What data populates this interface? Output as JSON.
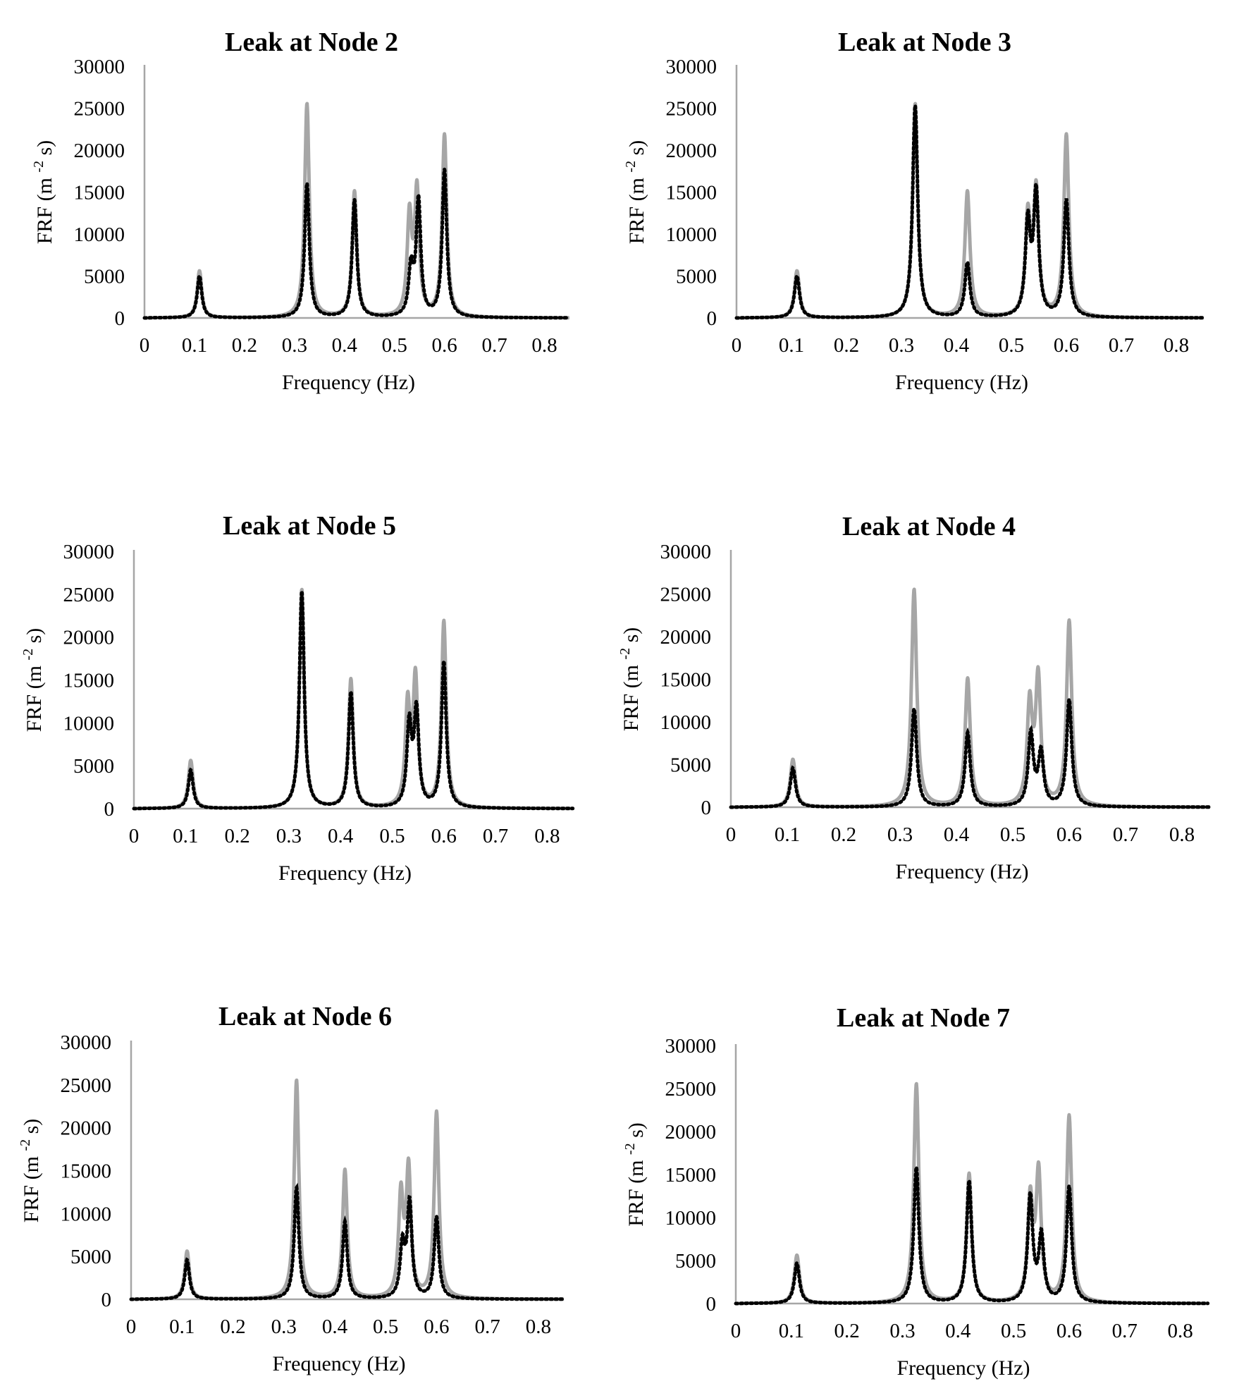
{
  "colors": {
    "baseline": "#a6a6a6",
    "leak": "#000000",
    "axis": "#a6a6a6"
  },
  "chart_data": [
    {
      "type": "line",
      "title": "Leak at Node 2",
      "xlabel": "Frequency (Hz)",
      "ylabel_main": "FRF",
      "ylabel_unit": "(m",
      "ylabel_exp": "-2",
      "ylabel_tail": "s)",
      "xlim": [
        0,
        0.85
      ],
      "ylim": [
        0,
        30000
      ],
      "xticks": [
        "0",
        "0.1",
        "0.2",
        "0.3",
        "0.4",
        "0.5",
        "0.6",
        "0.7",
        "0.8"
      ],
      "yticks": [
        "0",
        "5000",
        "10000",
        "15000",
        "20000",
        "25000",
        "30000"
      ],
      "grid": false,
      "series": [
        {
          "style": "solid-grey",
          "peaks": [
            [
              0.11,
              5600
            ],
            [
              0.325,
              25500
            ],
            [
              0.42,
              15000
            ],
            [
              0.53,
              11700
            ],
            [
              0.545,
              14800
            ],
            [
              0.6,
              21700
            ]
          ]
        },
        {
          "style": "dotted-black",
          "peaks": [
            [
              0.11,
              5000
            ],
            [
              0.325,
              16000
            ],
            [
              0.42,
              14000
            ],
            [
              0.533,
              5600
            ],
            [
              0.548,
              13800
            ],
            [
              0.6,
              17500
            ]
          ]
        }
      ]
    },
    {
      "type": "line",
      "title": "Leak at Node 3",
      "xlabel": "Frequency (Hz)",
      "ylabel_main": "FRF",
      "ylabel_unit": "(m",
      "ylabel_exp": "-2",
      "ylabel_tail": "s)",
      "xlim": [
        0,
        0.85
      ],
      "ylim": [
        0,
        30000
      ],
      "xticks": [
        "0",
        "0.1",
        "0.2",
        "0.3",
        "0.4",
        "0.5",
        "0.6",
        "0.7",
        "0.8"
      ],
      "yticks": [
        "0",
        "5000",
        "10000",
        "15000",
        "20000",
        "25000",
        "30000"
      ],
      "grid": false,
      "series": [
        {
          "style": "solid-grey",
          "peaks": [
            [
              0.11,
              5600
            ],
            [
              0.325,
              25500
            ],
            [
              0.42,
              15000
            ],
            [
              0.53,
              11700
            ],
            [
              0.545,
              14800
            ],
            [
              0.6,
              21700
            ]
          ]
        },
        {
          "style": "dotted-black",
          "peaks": [
            [
              0.11,
              5000
            ],
            [
              0.325,
              25300
            ],
            [
              0.42,
              6500
            ],
            [
              0.53,
              11000
            ],
            [
              0.545,
              14500
            ],
            [
              0.6,
              14000
            ]
          ]
        }
      ]
    },
    {
      "type": "line",
      "title": "Leak at Node 5",
      "xlabel": "Frequency (Hz)",
      "ylabel_main": "FRF",
      "ylabel_unit": "(m",
      "ylabel_exp": "-2",
      "ylabel_tail": "s)",
      "xlim": [
        0,
        0.85
      ],
      "ylim": [
        0,
        30000
      ],
      "xticks": [
        "0",
        "0.1",
        "0.2",
        "0.3",
        "0.4",
        "0.5",
        "0.6",
        "0.7",
        "0.8"
      ],
      "yticks": [
        "0",
        "5000",
        "10000",
        "15000",
        "20000",
        "25000",
        "30000"
      ],
      "grid": false,
      "series": [
        {
          "style": "solid-grey",
          "peaks": [
            [
              0.11,
              5600
            ],
            [
              0.325,
              25500
            ],
            [
              0.42,
              15000
            ],
            [
              0.53,
              11700
            ],
            [
              0.545,
              14800
            ],
            [
              0.6,
              21700
            ]
          ]
        },
        {
          "style": "dotted-black",
          "peaks": [
            [
              0.11,
              4500
            ],
            [
              0.325,
              25300
            ],
            [
              0.42,
              13500
            ],
            [
              0.533,
              9500
            ],
            [
              0.547,
              11000
            ],
            [
              0.6,
              17000
            ]
          ]
        }
      ]
    },
    {
      "type": "line",
      "title": "Leak at Node 4",
      "xlabel": "Frequency (Hz)",
      "ylabel_main": "FRF",
      "ylabel_unit": "(m",
      "ylabel_exp": "-2",
      "ylabel_tail": "s)",
      "xlim": [
        0,
        0.85
      ],
      "ylim": [
        0,
        30000
      ],
      "xticks": [
        "0",
        "0.1",
        "0.2",
        "0.3",
        "0.4",
        "0.5",
        "0.6",
        "0.7",
        "0.8"
      ],
      "yticks": [
        "0",
        "5000",
        "10000",
        "15000",
        "20000",
        "25000",
        "30000"
      ],
      "grid": false,
      "series": [
        {
          "style": "solid-grey",
          "peaks": [
            [
              0.11,
              5600
            ],
            [
              0.325,
              25500
            ],
            [
              0.42,
              15000
            ],
            [
              0.53,
              11700
            ],
            [
              0.545,
              14800
            ],
            [
              0.6,
              21700
            ]
          ]
        },
        {
          "style": "dotted-black",
          "peaks": [
            [
              0.11,
              4600
            ],
            [
              0.325,
              11500
            ],
            [
              0.42,
              8700
            ],
            [
              0.532,
              8500
            ],
            [
              0.55,
              6200
            ],
            [
              0.6,
              12500
            ]
          ]
        }
      ]
    },
    {
      "type": "line",
      "title": "Leak at Node 6",
      "xlabel": "Frequency (Hz)",
      "ylabel_main": "FRF",
      "ylabel_unit": "(m",
      "ylabel_exp": "-2",
      "ylabel_tail": "s)",
      "xlim": [
        0,
        0.85
      ],
      "ylim": [
        0,
        30000
      ],
      "xticks": [
        "0",
        "0.1",
        "0.2",
        "0.3",
        "0.4",
        "0.5",
        "0.6",
        "0.7",
        "0.8"
      ],
      "yticks": [
        "0",
        "5000",
        "10000",
        "15000",
        "20000",
        "25000",
        "30000"
      ],
      "grid": false,
      "series": [
        {
          "style": "solid-grey",
          "peaks": [
            [
              0.11,
              5600
            ],
            [
              0.325,
              25500
            ],
            [
              0.42,
              15000
            ],
            [
              0.53,
              11700
            ],
            [
              0.545,
              14800
            ],
            [
              0.6,
              21700
            ]
          ]
        },
        {
          "style": "dotted-black",
          "peaks": [
            [
              0.11,
              4600
            ],
            [
              0.325,
              13000
            ],
            [
              0.42,
              9000
            ],
            [
              0.533,
              6000
            ],
            [
              0.547,
              11000
            ],
            [
              0.6,
              9500
            ]
          ]
        }
      ]
    },
    {
      "type": "line",
      "title": "Leak at Node 7",
      "xlabel": "Frequency (Hz)",
      "ylabel_main": "FRF",
      "ylabel_unit": "(m",
      "ylabel_exp": "-2",
      "ylabel_tail": "s)",
      "xlim": [
        0,
        0.85
      ],
      "ylim": [
        0,
        30000
      ],
      "xticks": [
        "0",
        "0.1",
        "0.2",
        "0.3",
        "0.4",
        "0.5",
        "0.6",
        "0.7",
        "0.8"
      ],
      "yticks": [
        "0",
        "5000",
        "10000",
        "15000",
        "20000",
        "25000",
        "30000"
      ],
      "grid": false,
      "series": [
        {
          "style": "solid-grey",
          "peaks": [
            [
              0.11,
              5600
            ],
            [
              0.325,
              25500
            ],
            [
              0.42,
              15000
            ],
            [
              0.53,
              11700
            ],
            [
              0.545,
              14800
            ],
            [
              0.6,
              21700
            ]
          ]
        },
        {
          "style": "dotted-black",
          "peaks": [
            [
              0.11,
              4700
            ],
            [
              0.325,
              15800
            ],
            [
              0.42,
              14200
            ],
            [
              0.53,
              12300
            ],
            [
              0.55,
              7600
            ],
            [
              0.6,
              13500
            ]
          ]
        }
      ]
    }
  ]
}
